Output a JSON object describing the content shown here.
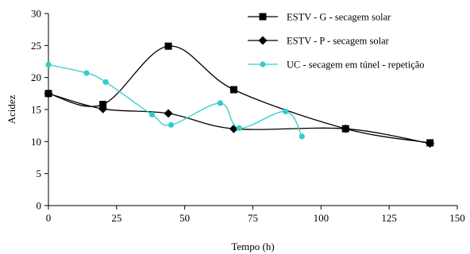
{
  "chart_data": {
    "type": "line",
    "xlabel": "Tempo (h)",
    "ylabel": "Acidez",
    "xlim": [
      0,
      150
    ],
    "ylim": [
      0,
      30
    ],
    "xticks": [
      0,
      25,
      50,
      75,
      100,
      125,
      150
    ],
    "yticks": [
      0,
      5,
      10,
      15,
      20,
      25,
      30
    ],
    "grid": false,
    "legend_position": "top-right",
    "series": [
      {
        "name": "ESTV - G - secagem solar",
        "marker": "square",
        "color": "#000000",
        "x": [
          0,
          20,
          44,
          68,
          109,
          140
        ],
        "y": [
          17.5,
          15.8,
          24.9,
          18.1,
          12.0,
          9.8
        ]
      },
      {
        "name": "ESTV - P - secagem solar",
        "marker": "diamond",
        "color": "#000000",
        "x": [
          0,
          20,
          44,
          68,
          109,
          140
        ],
        "y": [
          17.5,
          15.1,
          14.4,
          12.0,
          12.0,
          9.7
        ]
      },
      {
        "name": "UC - secagem em túnel - repetição",
        "marker": "circle",
        "color": "#33CCCC",
        "x": [
          0,
          14,
          21,
          38,
          45,
          63,
          70,
          87,
          93
        ],
        "y": [
          22.0,
          20.7,
          19.3,
          14.2,
          12.6,
          16.0,
          12.1,
          14.7,
          10.8
        ]
      }
    ]
  }
}
